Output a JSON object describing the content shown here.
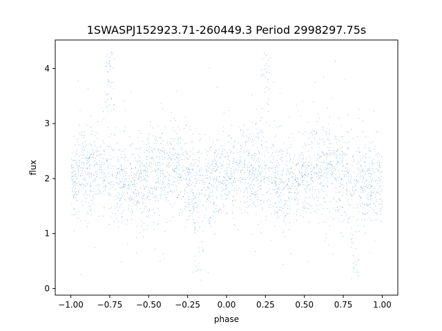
{
  "chart_data": {
    "type": "scatter",
    "title": "1SWASPJ152923.71-260449.3 Period 2998297.75s",
    "xlabel": "phase",
    "ylabel": "flux",
    "xlim": [
      -1.1,
      1.1
    ],
    "ylim": [
      -0.12,
      4.52
    ],
    "x_ticks": [
      -1.0,
      -0.75,
      -0.5,
      -0.25,
      0.0,
      0.25,
      0.5,
      0.75,
      1.0
    ],
    "x_tick_labels": [
      "−1.00",
      "−0.75",
      "−0.50",
      "−0.25",
      "0.00",
      "0.25",
      "0.50",
      "0.75",
      "1.00"
    ],
    "y_ticks": [
      0,
      1,
      2,
      3,
      4
    ],
    "y_tick_labels": [
      "0",
      "1",
      "2",
      "3",
      "4"
    ],
    "grid": false,
    "legend": "none",
    "marker_color": "#1f77b4",
    "series": [
      {
        "description_of_distribution": "dense cloud of thousands of points",
        "points_summary": {
          "phase_range": [
            -1.0,
            1.0
          ],
          "median_flux": 2.05,
          "typical_flux_range": [
            1.3,
            2.9
          ],
          "outlier_flux_range": [
            0.05,
            4.35
          ],
          "high_excursion_phases": [
            -0.75,
            0.25
          ],
          "low_excursion_phases": [
            -0.18,
            0.82
          ]
        }
      }
    ]
  }
}
